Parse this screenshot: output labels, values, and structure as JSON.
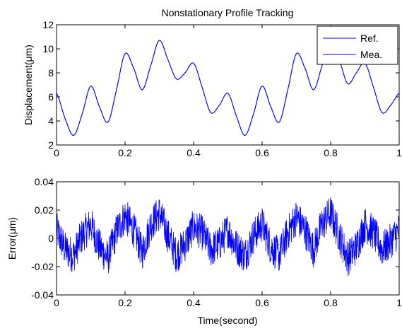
{
  "chart_data": [
    {
      "type": "line",
      "title": "Nonstationary Profile Tracking",
      "xlabel": "",
      "ylabel": "Displacement(μm)",
      "xlim": [
        0,
        1
      ],
      "ylim": [
        2,
        12
      ],
      "xticks": [
        "0",
        "0.2",
        "0.4",
        "0.6",
        "0.8",
        "1"
      ],
      "yticks": [
        "2",
        "4",
        "6",
        "8",
        "10",
        "12"
      ],
      "grid": false,
      "legend": "top-right",
      "x": [
        0,
        0.025,
        0.05,
        0.075,
        0.1,
        0.125,
        0.15,
        0.175,
        0.2,
        0.225,
        0.25,
        0.275,
        0.3,
        0.325,
        0.35,
        0.375,
        0.4,
        0.425,
        0.45,
        0.475,
        0.5,
        0.525,
        0.55,
        0.575,
        0.6,
        0.625,
        0.65,
        0.675,
        0.7,
        0.725,
        0.75,
        0.775,
        0.8,
        0.825,
        0.85,
        0.875,
        0.9,
        0.925,
        0.95,
        0.975,
        1.0
      ],
      "series": [
        {
          "name": "Ref.",
          "color": "#0000ff",
          "values": [
            6.3,
            4.2,
            2.8,
            4.6,
            6.9,
            5.2,
            3.9,
            6.6,
            9.6,
            8.4,
            6.6,
            8.6,
            10.7,
            9.1,
            7.5,
            8.0,
            8.8,
            6.8,
            4.7,
            5.3,
            6.3,
            4.4,
            2.8,
            4.6,
            6.9,
            5.2,
            3.9,
            6.6,
            9.6,
            8.4,
            6.6,
            8.6,
            10.7,
            9.1,
            7.1,
            8.0,
            8.8,
            6.8,
            4.7,
            5.3,
            6.3
          ]
        },
        {
          "name": "Mea.",
          "color": "#0000ff",
          "values": [
            6.3,
            4.2,
            2.8,
            4.6,
            6.9,
            5.2,
            3.9,
            6.6,
            9.6,
            8.4,
            6.6,
            8.6,
            10.7,
            9.1,
            7.5,
            8.0,
            8.8,
            6.8,
            4.7,
            5.3,
            6.3,
            4.4,
            2.8,
            4.6,
            6.9,
            5.2,
            3.9,
            6.6,
            9.6,
            8.4,
            6.6,
            8.6,
            10.7,
            9.1,
            7.1,
            8.0,
            8.8,
            6.8,
            4.7,
            5.3,
            6.3
          ]
        }
      ]
    },
    {
      "type": "line",
      "title": "",
      "xlabel": "Time(second)",
      "ylabel": "Error(μm)",
      "xlim": [
        0,
        1
      ],
      "ylim": [
        -0.04,
        0.04
      ],
      "xticks": [
        "0",
        "0.2",
        "0.4",
        "0.6",
        "0.8",
        "1"
      ],
      "yticks": [
        "-0.04",
        "-0.02",
        "0",
        "0.02",
        "0.04"
      ],
      "grid": false,
      "series": [
        {
          "name": "",
          "color": "#0000ff",
          "noise_amplitude": 0.008,
          "x": [
            0,
            0.025,
            0.05,
            0.075,
            0.1,
            0.125,
            0.15,
            0.175,
            0.2,
            0.225,
            0.25,
            0.275,
            0.3,
            0.325,
            0.35,
            0.375,
            0.4,
            0.425,
            0.45,
            0.475,
            0.5,
            0.525,
            0.55,
            0.575,
            0.6,
            0.625,
            0.65,
            0.675,
            0.7,
            0.725,
            0.75,
            0.775,
            0.8,
            0.825,
            0.85,
            0.875,
            0.9,
            0.925,
            0.95,
            0.975,
            1.0
          ],
          "values": [
            0.006,
            -0.008,
            -0.012,
            0.002,
            0.01,
            -0.006,
            -0.014,
            0.005,
            0.016,
            0.006,
            -0.01,
            0.01,
            0.018,
            0.002,
            -0.012,
            -0.004,
            0.008,
            0.004,
            -0.008,
            -0.004,
            0.006,
            -0.006,
            -0.012,
            0.002,
            0.01,
            -0.006,
            -0.012,
            0.004,
            0.015,
            0.006,
            -0.008,
            0.01,
            0.018,
            0.002,
            -0.014,
            -0.006,
            0.01,
            0.004,
            -0.008,
            -0.002,
            0.006
          ]
        }
      ]
    }
  ]
}
